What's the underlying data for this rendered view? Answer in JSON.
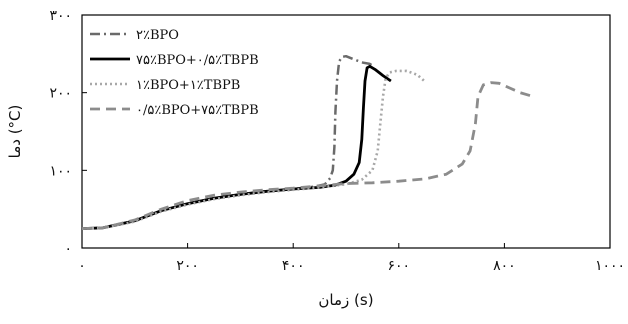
{
  "chart_data": {
    "type": "line",
    "xlabel": "زمان (s)",
    "ylabel": "دما (°C)",
    "xlim": [
      0,
      1000
    ],
    "ylim": [
      0,
      300
    ],
    "x_ticks": [
      {
        "value": 0,
        "label": "۰"
      },
      {
        "value": 200,
        "label": "۲۰۰"
      },
      {
        "value": 400,
        "label": "۴۰۰"
      },
      {
        "value": 600,
        "label": "۶۰۰"
      },
      {
        "value": 800,
        "label": "۸۰۰"
      },
      {
        "value": 1000,
        "label": "۱۰۰۰"
      }
    ],
    "y_ticks": [
      {
        "value": 0,
        "label": "۰"
      },
      {
        "value": 100,
        "label": "۱۰۰"
      },
      {
        "value": 200,
        "label": "۲۰۰"
      },
      {
        "value": 300,
        "label": "۳۰۰"
      }
    ],
    "grid": false,
    "legend_position": "top-left",
    "series": [
      {
        "name": "۲٪BPO",
        "color": "#6a6a6a",
        "dash": "dashdot",
        "width": 2.5,
        "x": [
          0,
          40,
          100,
          150,
          200,
          250,
          300,
          350,
          400,
          440,
          460,
          470,
          475,
          478,
          480,
          483,
          487,
          492,
          500,
          515,
          530,
          545,
          550
        ],
        "y": [
          25,
          26,
          35,
          48,
          57,
          64,
          69,
          73,
          76,
          79,
          82,
          90,
          100,
          130,
          175,
          215,
          240,
          246,
          247,
          243,
          239,
          237,
          235
        ]
      },
      {
        "name": "۷۵٪BPO+۰/۵٪TBPB",
        "color": "#000000",
        "dash": "solid",
        "width": 2.8,
        "x": [
          0,
          40,
          100,
          150,
          200,
          250,
          300,
          350,
          400,
          450,
          480,
          500,
          515,
          525,
          530,
          533,
          536,
          540,
          545,
          555,
          570,
          585
        ],
        "y": [
          25,
          26,
          35,
          48,
          57,
          64,
          69,
          73,
          76,
          78,
          81,
          86,
          95,
          110,
          140,
          180,
          215,
          232,
          234,
          230,
          222,
          215
        ]
      },
      {
        "name": "۱٪BPO+۱٪TBPB",
        "color": "#a8a8a8",
        "dash": "dotted",
        "width": 2.6,
        "x": [
          0,
          40,
          100,
          150,
          200,
          250,
          300,
          350,
          400,
          450,
          500,
          530,
          550,
          560,
          565,
          570,
          575,
          582,
          595,
          615,
          635,
          650
        ],
        "y": [
          25,
          26,
          34,
          47,
          56,
          63,
          68,
          72,
          75,
          78,
          82,
          88,
          100,
          125,
          160,
          195,
          218,
          226,
          228,
          228,
          223,
          214
        ]
      },
      {
        "name": "۰/۵٪BPO+۷۵٪TBPB",
        "color": "#8c8c8c",
        "dash": "dashed",
        "width": 2.8,
        "x": [
          0,
          40,
          100,
          150,
          200,
          250,
          300,
          350,
          400,
          450,
          500,
          550,
          600,
          650,
          690,
          720,
          735,
          745,
          750,
          760,
          775,
          790,
          810,
          830,
          850
        ],
        "y": [
          25,
          26,
          36,
          50,
          61,
          68,
          72,
          75,
          77,
          80,
          83,
          84,
          86,
          89,
          95,
          108,
          125,
          160,
          195,
          210,
          213,
          212,
          206,
          200,
          196
        ]
      }
    ]
  }
}
